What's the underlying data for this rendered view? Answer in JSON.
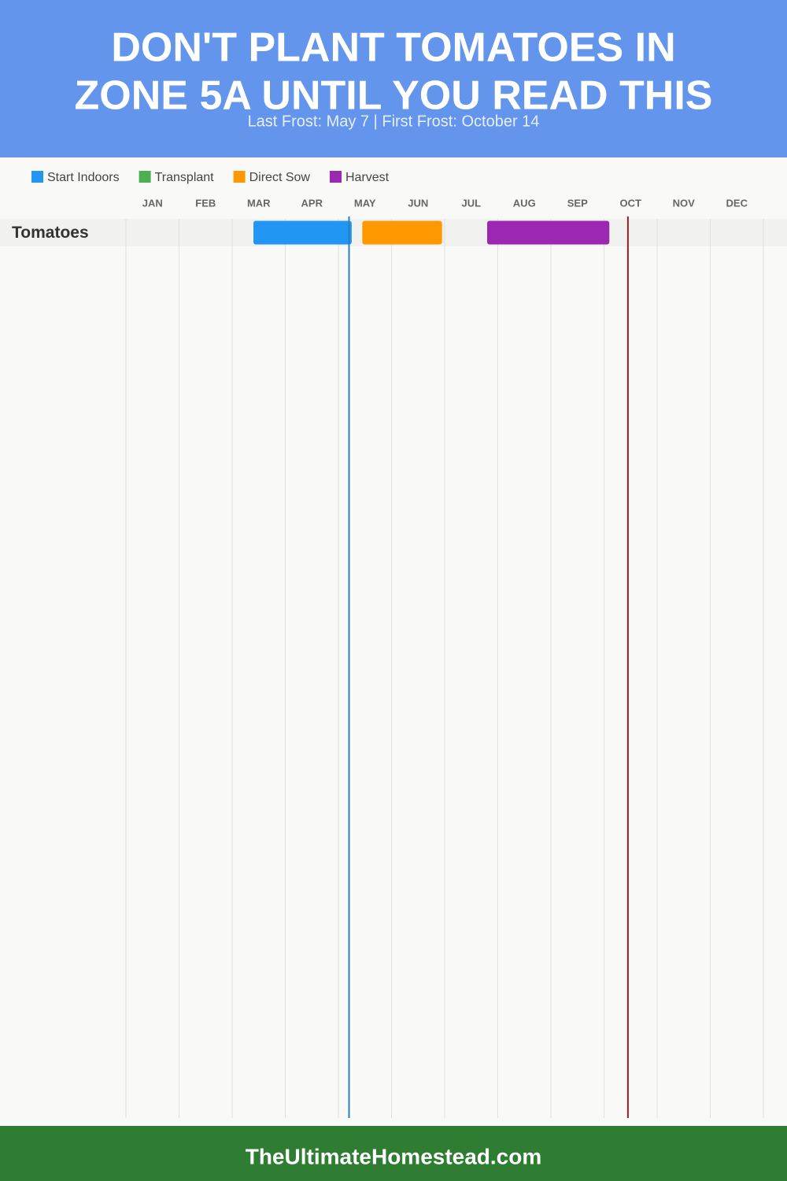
{
  "chart_data": {
    "type": "gantt",
    "title_lines": [
      "DON'T PLANT TOMATOES IN",
      "ZONE 5A UNTIL YOU READ THIS"
    ],
    "subtitle": "Last Frost: May 7 | First Frost: October 14",
    "series": [
      {
        "name": "Start Indoors",
        "color": "#2196f3"
      },
      {
        "name": "Transplant",
        "color": "#4caf50"
      },
      {
        "name": "Direct Sow",
        "color": "#ff9800"
      },
      {
        "name": "Harvest",
        "color": "#9c27b0"
      }
    ],
    "categories": [
      "JAN",
      "FEB",
      "MAR",
      "APR",
      "MAY",
      "JUN",
      "JUL",
      "AUG",
      "SEP",
      "OCT",
      "NOV",
      "DEC"
    ],
    "xlim": [
      0,
      12
    ],
    "xticks": [
      0,
      1,
      2,
      3,
      4,
      5,
      6,
      7,
      8,
      9,
      10,
      11,
      12
    ],
    "rows": [
      {
        "label": "Tomatoes",
        "bars": [
          {
            "series": 0,
            "start": 2.4,
            "end": 4.25
          },
          {
            "series": 2,
            "start": 4.45,
            "end": 5.95
          },
          {
            "series": 3,
            "start": 6.8,
            "end": 9.1
          }
        ]
      }
    ],
    "frost_lines": [
      {
        "value": 4.2,
        "color": "#2980b9"
      },
      {
        "value": 9.45,
        "color": "#9b1c1c"
      }
    ],
    "grid": true,
    "footer": "TheUltimateHomestead.com"
  }
}
